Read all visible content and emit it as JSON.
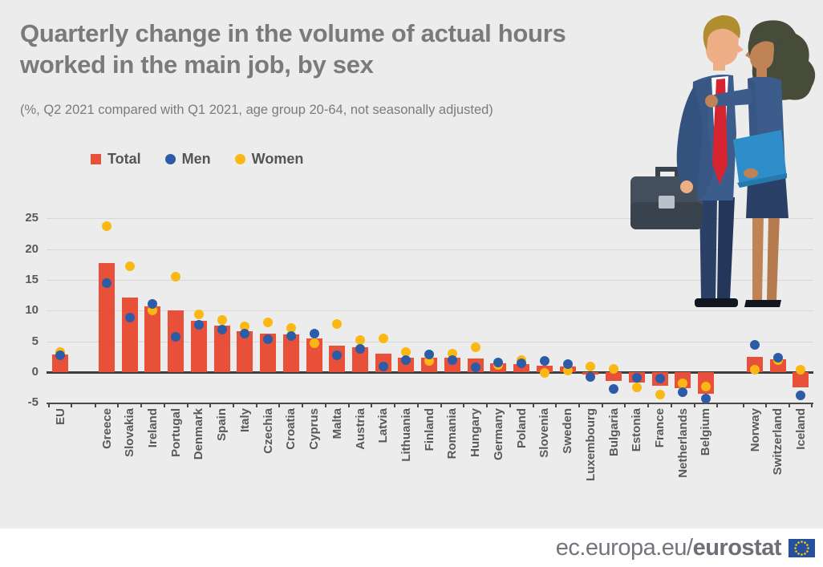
{
  "title": "Quarterly change in the volume of actual hours\nworked in the main job, by sex",
  "subtitle": "(%, Q2 2021 compared with Q1 2021, age group 20-64, not seasonally adjusted)",
  "legend": {
    "items": [
      {
        "label": "Total",
        "color": "#e8503a",
        "shape": "square"
      },
      {
        "label": "Men",
        "color": "#2d5ca6",
        "shape": "circle"
      },
      {
        "label": "Women",
        "color": "#fbb712",
        "shape": "circle"
      }
    ]
  },
  "footer": {
    "url_regular": "ec.europa.eu/",
    "url_bold": "eurostat"
  },
  "colors": {
    "background": "#ececec",
    "bar": "#e8503a",
    "men": "#2d5ca6",
    "women": "#fbb712",
    "title_text": "#7a7a7a",
    "axis_text": "#595959",
    "grid": "#d8d8d8",
    "axis_line": "#3d3d3d",
    "footer_bg": "#ffffff",
    "eu_flag_blue": "#24509e",
    "eu_flag_stars": "#ffcc00"
  },
  "chart_data": {
    "type": "bar",
    "title": "Quarterly change in the volume of actual hours worked in the main job, by sex",
    "subtitle": "%, Q2 2021 compared with Q1 2021, age group 20-64, not seasonally adjusted",
    "ylabel": "%",
    "ylim": [
      -5,
      25
    ],
    "yticks": [
      25,
      20,
      15,
      10,
      5,
      0,
      -5
    ],
    "grid": true,
    "legend_position": "top-left",
    "separator_after": "Belgium",
    "categories": [
      "EU",
      "Greece",
      "Slovakia",
      "Ireland",
      "Portugal",
      "Denmark",
      "Spain",
      "Italy",
      "Czechia",
      "Croatia",
      "Cyprus",
      "Malta",
      "Austria",
      "Latvia",
      "Lithuania",
      "Finland",
      "Romania",
      "Hungary",
      "Germany",
      "Poland",
      "Slovenia",
      "Sweden",
      "Luxembourg",
      "Bulgaria",
      "Estonia",
      "France",
      "Netherlands",
      "Belgium",
      "Norway",
      "Switzerland",
      "Iceland"
    ],
    "series": [
      {
        "name": "Total",
        "render": "bar",
        "color": "#e8503a",
        "values": [
          2.9,
          17.8,
          12.2,
          10.7,
          10.0,
          8.4,
          7.6,
          6.6,
          6.3,
          6.1,
          5.5,
          4.3,
          4.1,
          3.0,
          2.4,
          2.3,
          2.3,
          2.2,
          1.5,
          1.3,
          1.0,
          0.9,
          -0.4,
          -1.4,
          -1.7,
          -2.2,
          -2.6,
          -3.5,
          2.5,
          2.1,
          -2.5
        ]
      },
      {
        "name": "Men",
        "render": "point",
        "color": "#2d5ca6",
        "values": [
          2.7,
          14.5,
          8.9,
          11.1,
          5.7,
          7.7,
          6.9,
          6.2,
          5.4,
          5.9,
          6.3,
          2.7,
          3.8,
          0.9,
          2.0,
          2.9,
          2.0,
          0.8,
          1.6,
          1.5,
          1.8,
          1.3,
          -0.8,
          -2.8,
          -0.9,
          -1.0,
          -3.3,
          -4.3,
          4.5,
          2.3,
          -3.8
        ]
      },
      {
        "name": "Women",
        "render": "point",
        "color": "#fbb712",
        "values": [
          3.3,
          23.8,
          17.2,
          10.1,
          15.5,
          9.4,
          8.5,
          7.5,
          8.1,
          7.2,
          4.7,
          7.8,
          5.2,
          5.5,
          3.2,
          1.8,
          3.0,
          4.1,
          1.2,
          1.9,
          -0.1,
          0.3,
          0.9,
          0.5,
          -2.5,
          -3.6,
          -1.8,
          -2.3,
          0.4,
          2.0,
          0.4
        ]
      }
    ]
  }
}
